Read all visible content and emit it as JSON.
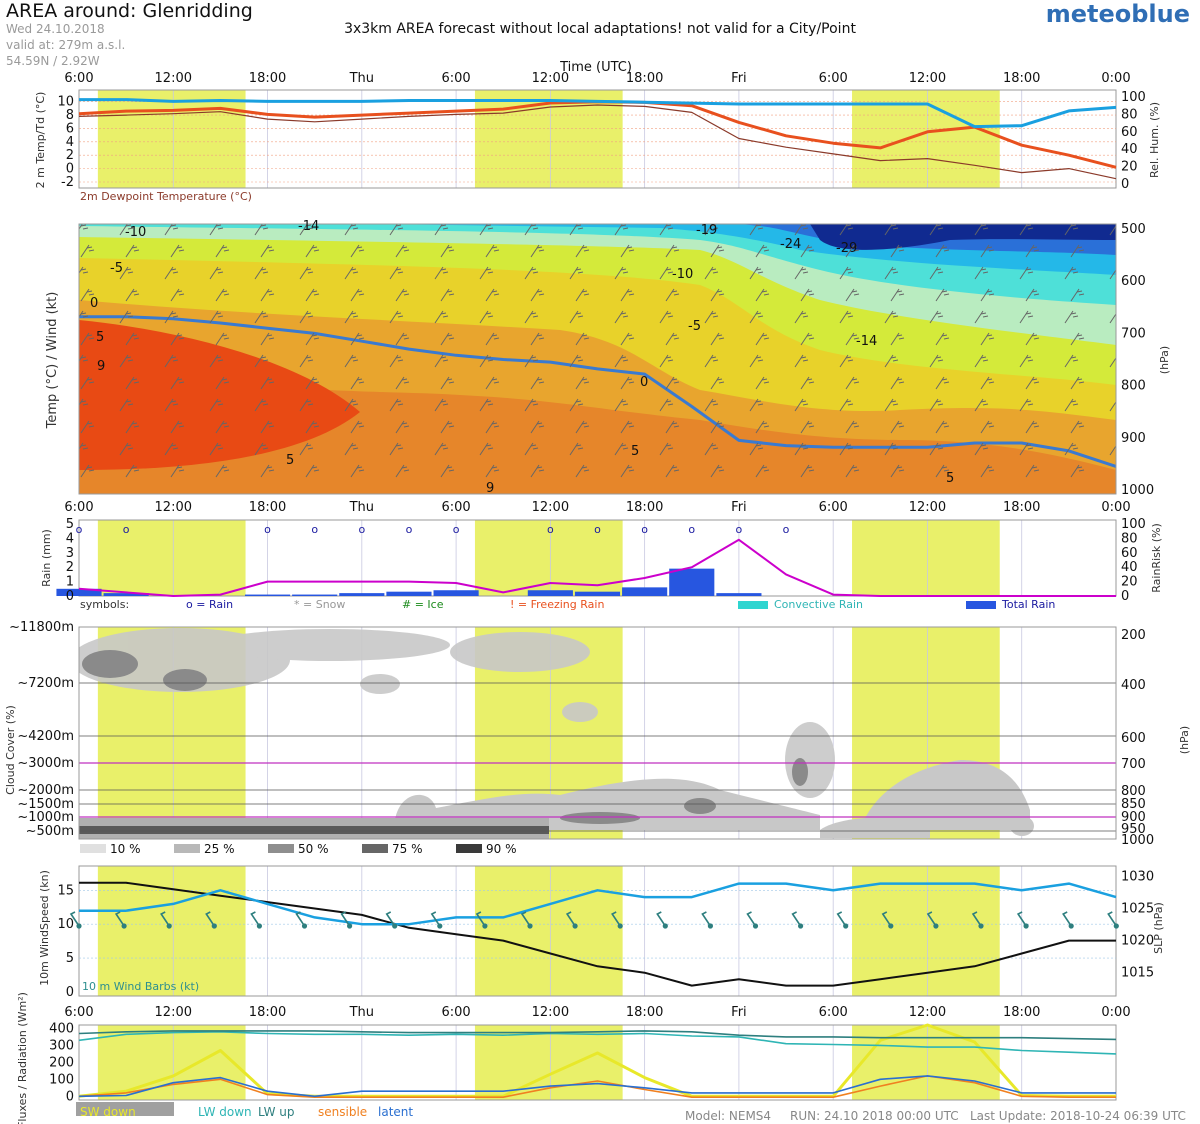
{
  "header": {
    "title": "AREA around: Glenridding",
    "date": "Wed 24.10.2018",
    "elevation": "valid at: 279m a.s.l.",
    "coords": "54.59N / 2.92W",
    "warning": "3x3km AREA forecast without local adaptations! not valid for a City/Point",
    "logo": "meteoblue"
  },
  "time_axis": {
    "label": "Time (UTC)",
    "ticks": [
      "6:00",
      "12:00",
      "18:00",
      "Thu",
      "6:00",
      "12:00",
      "18:00",
      "Fri",
      "6:00",
      "12:00",
      "18:00",
      "0:00"
    ],
    "tick_hours": [
      0,
      6,
      12,
      18,
      24,
      30,
      36,
      42,
      48,
      54,
      60,
      66
    ],
    "hours_total": 66,
    "daylight_hours": [
      [
        1.2,
        10.6
      ],
      [
        25.2,
        34.6
      ],
      [
        49.2,
        58.6
      ]
    ]
  },
  "colors": {
    "temp": "#e8501e",
    "dewpoint": "#8b3a2a",
    "humidity": "#1aa0e0",
    "daylight": "#e9f06a",
    "rain_total": "#2756e0",
    "rain_risk": "#cc00cc",
    "slp": "#111111",
    "wind": "#1aa0e0",
    "sw_down": "#e8e82a",
    "lw_down": "#2fb5b5",
    "lw_up": "#2e7f7f",
    "sensible": "#f08020",
    "latent": "#2a6fd0"
  },
  "chart_data": [
    {
      "type": "line",
      "name": "temperature-humidity",
      "ylabel": "2 m Temp/Td (°C)",
      "ylabel_right": "Rel. Hum. (%)",
      "footnote": "2m Dewpoint Temperature (°C)",
      "ylim": [
        -2,
        11
      ],
      "ylim_right": [
        0,
        100
      ],
      "yticks": [
        "10",
        "8",
        "6",
        "4",
        "2",
        "0",
        "-2"
      ],
      "yticks_right": [
        "100",
        "80",
        "60",
        "40",
        "20",
        "0"
      ],
      "x": [
        0,
        3,
        6,
        9,
        12,
        15,
        18,
        21,
        24,
        27,
        30,
        33,
        36,
        39,
        42,
        45,
        48,
        51,
        54,
        57,
        60,
        63,
        66
      ],
      "series": [
        {
          "name": "2 m Temp",
          "values": [
            8.2,
            8.6,
            8.7,
            9.0,
            8.1,
            7.7,
            8.0,
            8.3,
            8.6,
            8.9,
            9.8,
            10.0,
            9.9,
            9.4,
            6.9,
            4.9,
            3.8,
            3.1,
            5.5,
            6.2,
            3.5,
            2.0,
            0.2
          ]
        },
        {
          "name": "2m Dewpoint Temperature",
          "values": [
            7.8,
            8.0,
            8.2,
            8.5,
            7.4,
            7.0,
            7.4,
            7.8,
            8.1,
            8.3,
            9.2,
            9.5,
            9.3,
            8.4,
            4.5,
            3.2,
            2.2,
            1.2,
            1.5,
            0.5,
            -0.6,
            0.0,
            -1.5
          ]
        },
        {
          "name": "Rel. Hum.",
          "values": [
            97,
            97,
            95,
            96,
            95,
            95,
            95,
            96,
            96,
            96,
            96,
            95,
            94,
            93,
            92,
            92,
            92,
            92,
            92,
            66,
            67,
            84,
            88
          ]
        }
      ]
    },
    {
      "type": "heatmap",
      "name": "temperature-wind-profile",
      "ylabel": "Temp (°C) / Wind (kt)",
      "ylabel_right": "(hPa)",
      "yticks_right": [
        "500",
        "600",
        "700",
        "800",
        "900",
        "1000"
      ],
      "contour_labels": [
        "-10",
        "-14",
        "-19",
        "-24",
        "-29",
        "-5",
        "-10",
        "0",
        "5",
        "-5",
        "-14",
        "9",
        "0",
        "5",
        "5",
        "9",
        "5"
      ],
      "freezing_level_hpa": [
        668,
        668,
        672,
        680,
        690,
        700,
        715,
        730,
        742,
        750,
        755,
        768,
        778,
        840,
        905,
        915,
        918,
        918,
        918,
        910,
        910,
        925,
        955
      ],
      "x": [
        0,
        3,
        6,
        9,
        12,
        15,
        18,
        21,
        24,
        27,
        30,
        33,
        36,
        39,
        42,
        45,
        48,
        51,
        54,
        57,
        60,
        63,
        66
      ]
    },
    {
      "type": "bar",
      "name": "precipitation",
      "ylabel": "Rain (mm)",
      "ylabel_right": "RainRisk (%)",
      "ylim": [
        0,
        5
      ],
      "ylim_right": [
        0,
        100
      ],
      "yticks": [
        "5",
        "4",
        "3",
        "2",
        "1",
        "0"
      ],
      "yticks_right": [
        "100",
        "80",
        "60",
        "40",
        "20",
        "0"
      ],
      "x": [
        0,
        3,
        6,
        9,
        12,
        15,
        18,
        21,
        24,
        27,
        30,
        33,
        36,
        39,
        42,
        45,
        48,
        51,
        54,
        57,
        60,
        63,
        66
      ],
      "series": [
        {
          "name": "Total Rain",
          "values": [
            0.5,
            0.2,
            0,
            0,
            0.1,
            0.1,
            0.2,
            0.3,
            0.4,
            0,
            0.4,
            0.3,
            0.6,
            1.9,
            0.2,
            0,
            0,
            0,
            0,
            0,
            0,
            0,
            0
          ]
        },
        {
          "name": "RainRisk",
          "values": [
            10,
            5,
            0,
            2,
            20,
            20,
            20,
            20,
            18,
            5,
            18,
            15,
            25,
            40,
            78,
            30,
            2,
            0,
            0,
            0,
            0,
            0,
            0
          ]
        }
      ],
      "legend": {
        "symbols": "symbols:",
        "rain": "o = Rain",
        "snow": "* = Snow",
        "ice": "# = Ice",
        "freezing": "! = Freezing Rain",
        "convective": "Convective Rain",
        "total": "Total Rain"
      }
    },
    {
      "type": "heatmap",
      "name": "cloud-cover",
      "ylabel": "Cloud Cover (%)",
      "ylabel_right": "(hPa)",
      "heights": [
        "~11800m",
        "~7200m",
        "~4200m",
        "~3000m",
        "~2000m",
        "~1500m",
        "~1000m",
        "~500m"
      ],
      "pressure_levels": [
        "200",
        "400",
        "600",
        "700",
        "800",
        "850",
        "900",
        "950",
        "1000"
      ],
      "legend": [
        "10 %",
        "25 %",
        "50 %",
        "75 %",
        "90 %"
      ]
    },
    {
      "type": "line",
      "name": "wind-pressure",
      "ylabel": "10m WindSpeed (kn)",
      "ylabel_right": "SLP (hPa)",
      "barb_label": "10 m Wind Barbs (kt)",
      "ylim": [
        0,
        18
      ],
      "ylim_right": [
        1012,
        1031
      ],
      "yticks": [
        "15",
        "10",
        "5",
        "0"
      ],
      "yticks_right": [
        "1030",
        "1025",
        "1020",
        "1015"
      ],
      "x": [
        0,
        3,
        6,
        9,
        12,
        15,
        18,
        21,
        24,
        27,
        30,
        33,
        36,
        39,
        42,
        45,
        48,
        51,
        54,
        57,
        60,
        63,
        66
      ],
      "series": [
        {
          "name": "10m WindSpeed",
          "values": [
            12,
            12,
            13,
            15,
            13,
            11,
            10,
            10,
            11,
            11,
            13,
            15,
            14,
            14,
            16,
            16,
            15,
            16,
            16,
            16,
            15,
            16,
            14
          ]
        },
        {
          "name": "SLP",
          "values": [
            1029,
            1029,
            1028,
            1027,
            1026,
            1025,
            1024,
            1022,
            1021,
            1020,
            1018,
            1016,
            1015,
            1013,
            1014,
            1013,
            1013,
            1014,
            1015,
            1016,
            1018,
            1020,
            1020
          ]
        }
      ]
    },
    {
      "type": "line",
      "name": "radiation-fluxes",
      "ylabel": "Fluxes / Radiation (Wm²)",
      "ylim": [
        -10,
        420
      ],
      "yticks": [
        "400",
        "300",
        "200",
        "100",
        "0"
      ],
      "x": [
        0,
        3,
        6,
        9,
        12,
        15,
        18,
        21,
        24,
        27,
        30,
        33,
        36,
        39,
        42,
        45,
        48,
        51,
        54,
        57,
        60,
        63,
        66
      ],
      "series": [
        {
          "name": "SW down",
          "values": [
            0,
            30,
            120,
            270,
            15,
            0,
            0,
            0,
            0,
            0,
            130,
            255,
            110,
            0,
            0,
            0,
            0,
            330,
            420,
            320,
            5,
            0,
            0
          ]
        },
        {
          "name": "LW down",
          "values": [
            330,
            365,
            375,
            380,
            370,
            365,
            365,
            360,
            365,
            360,
            370,
            365,
            370,
            355,
            350,
            310,
            305,
            300,
            290,
            290,
            270,
            260,
            250
          ]
        },
        {
          "name": "LW up",
          "values": [
            370,
            380,
            385,
            385,
            385,
            385,
            380,
            375,
            375,
            375,
            375,
            380,
            385,
            380,
            360,
            350,
            350,
            345,
            345,
            345,
            345,
            340,
            335
          ]
        },
        {
          "name": "sensible",
          "values": [
            0,
            20,
            70,
            100,
            10,
            -5,
            -5,
            -5,
            -5,
            -5,
            50,
            90,
            40,
            -5,
            -5,
            -5,
            -5,
            60,
            120,
            80,
            0,
            -5,
            -5
          ]
        },
        {
          "name": "latent",
          "values": [
            0,
            5,
            80,
            110,
            30,
            0,
            30,
            30,
            30,
            30,
            60,
            75,
            50,
            20,
            20,
            20,
            20,
            100,
            120,
            90,
            20,
            20,
            20
          ]
        }
      ],
      "legend": [
        "SW down",
        "LW down",
        "LW up",
        "sensible",
        "latent"
      ]
    }
  ],
  "footer": {
    "model": "Model: NEMS4",
    "run": "RUN: 24.10 2018 00:00 UTC",
    "update": "Last Update: 2018-10-24 06:39 UTC"
  }
}
